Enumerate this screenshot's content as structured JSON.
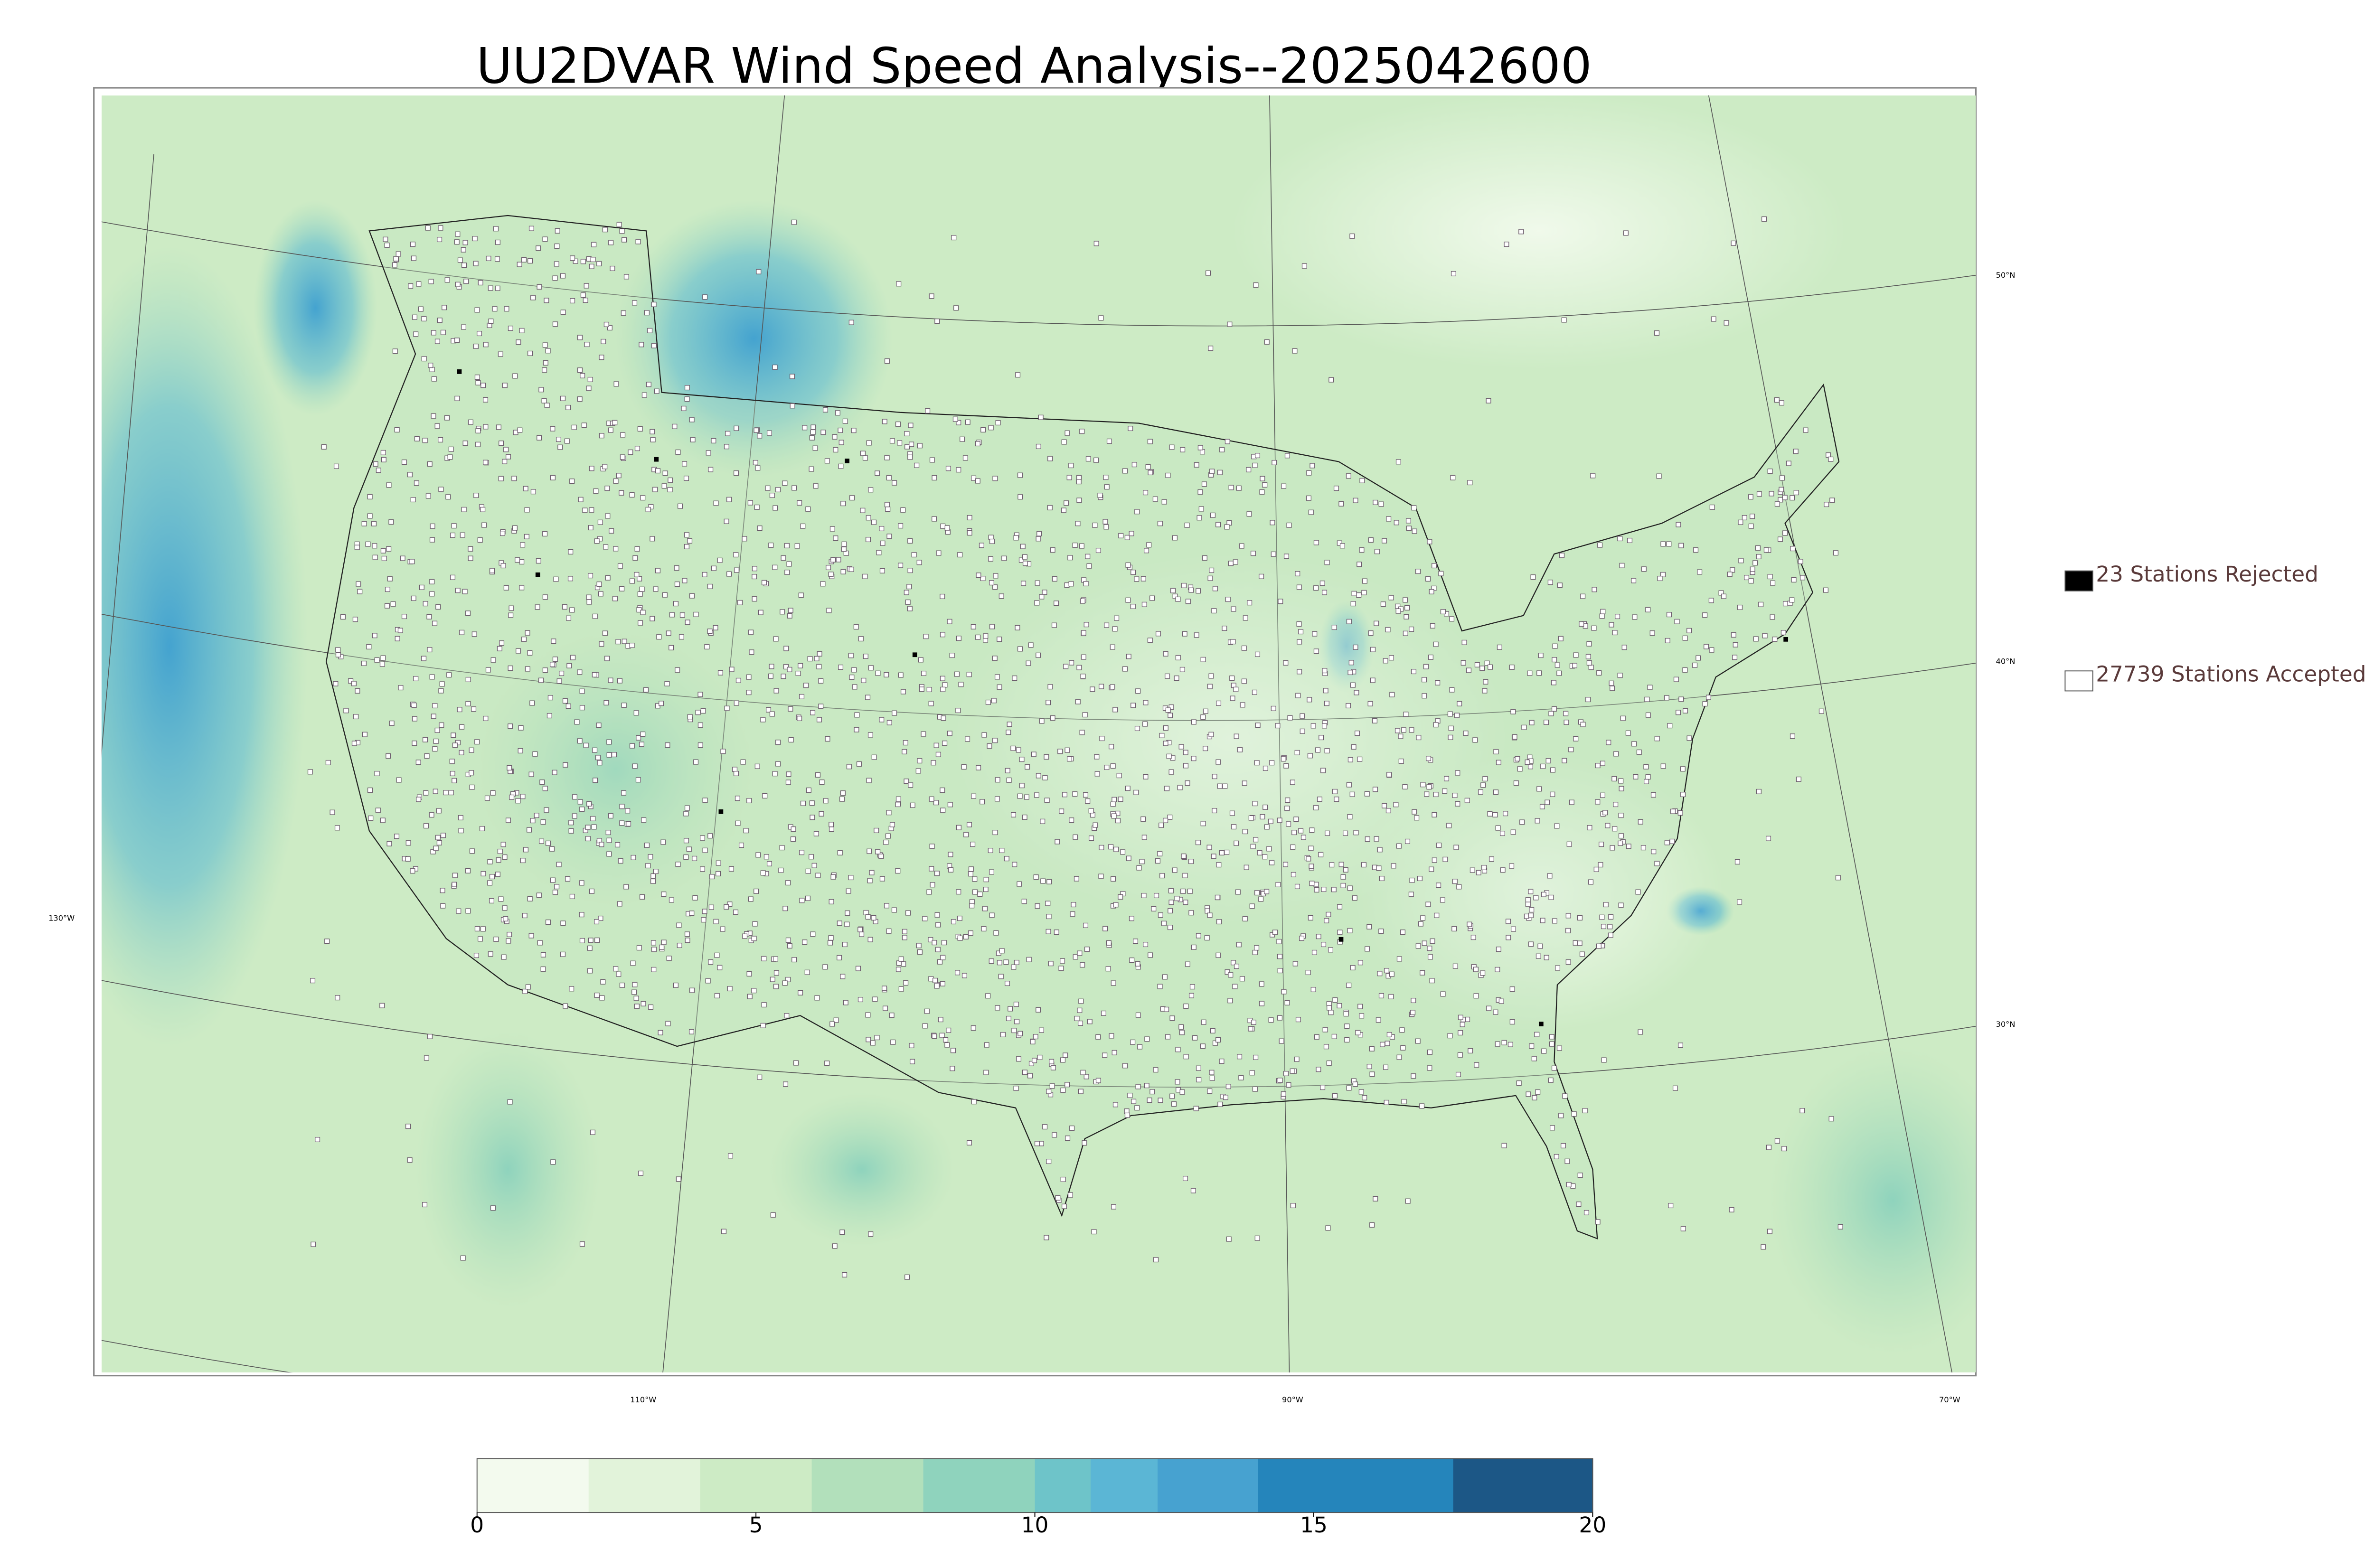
{
  "title": "UU2DVAR Wind Speed Analysis--2025042600",
  "legend": [
    {
      "label": "23 Stations Rejected",
      "color": "#000000"
    },
    {
      "label": "27739 Stations Accepted",
      "color": "#ffffff"
    }
  ],
  "latitude_labels": [
    "50°N",
    "40°N",
    "30°N"
  ],
  "longitude_labels": [
    "130°W",
    "110°W",
    "90°W",
    "70°W"
  ],
  "colorbar": {
    "lim": [
      0,
      20
    ],
    "ticks": [
      0,
      5,
      10,
      15,
      20
    ],
    "bounds": [
      0,
      2,
      4,
      6,
      8,
      10,
      11,
      12.2,
      14,
      17.5,
      20
    ],
    "colors": [
      "#f3faee",
      "#e2f3da",
      "#cdebc5",
      "#b2e0bb",
      "#8fd3bd",
      "#6ec4c9",
      "#5bb6d5",
      "#47a2d0",
      "#2585bb",
      "#1c5786"
    ]
  }
}
